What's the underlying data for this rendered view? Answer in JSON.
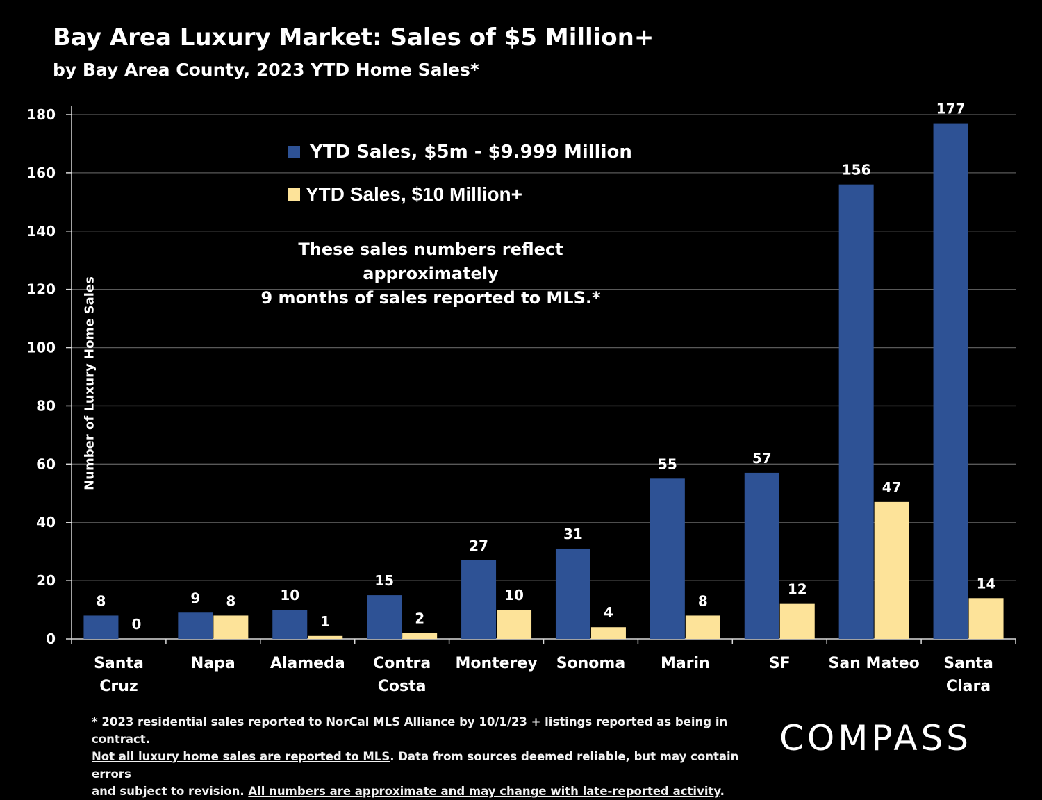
{
  "header": {
    "title": "Bay Area Luxury Market: Sales of $5 Million+",
    "subtitle": "by Bay Area County, 2023 YTD Home Sales*"
  },
  "chart_data": {
    "type": "bar",
    "title": "Bay Area Luxury Market: Sales of $5 Million+",
    "subtitle": "by Bay Area County, 2023 YTD Home Sales*",
    "ylabel": "Number of Luxury Home Sales",
    "xlabel": "",
    "ylim": [
      0,
      180
    ],
    "yticks": [
      0,
      20,
      40,
      60,
      80,
      100,
      120,
      140,
      160,
      180
    ],
    "grid": true,
    "legend_position": "top-center",
    "categories": [
      [
        "Santa",
        "Cruz"
      ],
      [
        "Napa"
      ],
      [
        "Alameda"
      ],
      [
        "Contra",
        "Costa"
      ],
      [
        "Monterey"
      ],
      [
        "Sonoma"
      ],
      [
        "Marin"
      ],
      [
        "SF"
      ],
      [
        "San Mateo"
      ],
      [
        "Santa",
        "Clara"
      ]
    ],
    "series": [
      {
        "name": "YTD Sales, $5m - $9.999 Million",
        "color": "#2e5295",
        "values": [
          8,
          9,
          10,
          15,
          27,
          31,
          55,
          57,
          156,
          177
        ]
      },
      {
        "name": "YTD Sales, $10 Million+",
        "color": "#fde399",
        "values": [
          0,
          8,
          1,
          2,
          10,
          4,
          8,
          12,
          47,
          14
        ]
      }
    ],
    "annotation": [
      "These sales numbers reflect approximately",
      "9 months of sales reported to MLS.*"
    ]
  },
  "footnote": {
    "line1": "* 2023 residential sales reported to NorCal MLS Alliance by 10/1/23 + listings reported as being in contract.",
    "line2_underlined": "Not all luxury home sales are reported to MLS",
    "line2_rest": ". Data from sources deemed reliable, but may contain errors",
    "line3_start": "and subject to revision. ",
    "line3_underlined": "All numbers are approximate and may change with late-reported activity",
    "line3_end": "."
  },
  "logo": {
    "text": "COMPASS"
  },
  "colors": {
    "background": "#000000",
    "grid": "#595959",
    "text": "#ffffff"
  }
}
